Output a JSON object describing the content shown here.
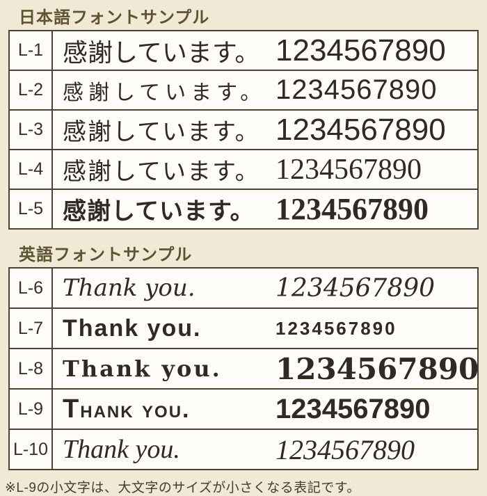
{
  "page": {
    "background_color": "#f0e9d5",
    "table_background_color": "#fdfcf8",
    "border_color": "#4a432f",
    "heading_color": "#5e5230",
    "text_color": "#2e2a24"
  },
  "sections": [
    {
      "heading": "日本語フォントサンプル",
      "rows": [
        {
          "id": "L-1",
          "sample": "感謝しています。",
          "digits": "1234567890"
        },
        {
          "id": "L-2",
          "sample": "感謝しています。",
          "digits": "1234567890"
        },
        {
          "id": "L-3",
          "sample": "感謝しています。",
          "digits": "1234567890"
        },
        {
          "id": "L-4",
          "sample": "感謝しています。",
          "digits": "1234567890"
        },
        {
          "id": "L-5",
          "sample": "感謝しています。",
          "digits": "1234567890"
        }
      ]
    },
    {
      "heading": "英語フォントサンプル",
      "rows": [
        {
          "id": "L-6",
          "sample": "Thank you.",
          "digits": "1234567890"
        },
        {
          "id": "L-7",
          "sample": "Thank you.",
          "digits": "1234567890"
        },
        {
          "id": "L-8",
          "sample": "Thank you.",
          "digits": "1234567890"
        },
        {
          "id": "L-9",
          "sample": "Thank you.",
          "digits": "1234567890"
        },
        {
          "id": "L-10",
          "sample": "Thank you.",
          "digits": "1234567890"
        }
      ]
    }
  ],
  "footnote": "※L-9の小文字は、大文字のサイズが小さくなる表記です。"
}
